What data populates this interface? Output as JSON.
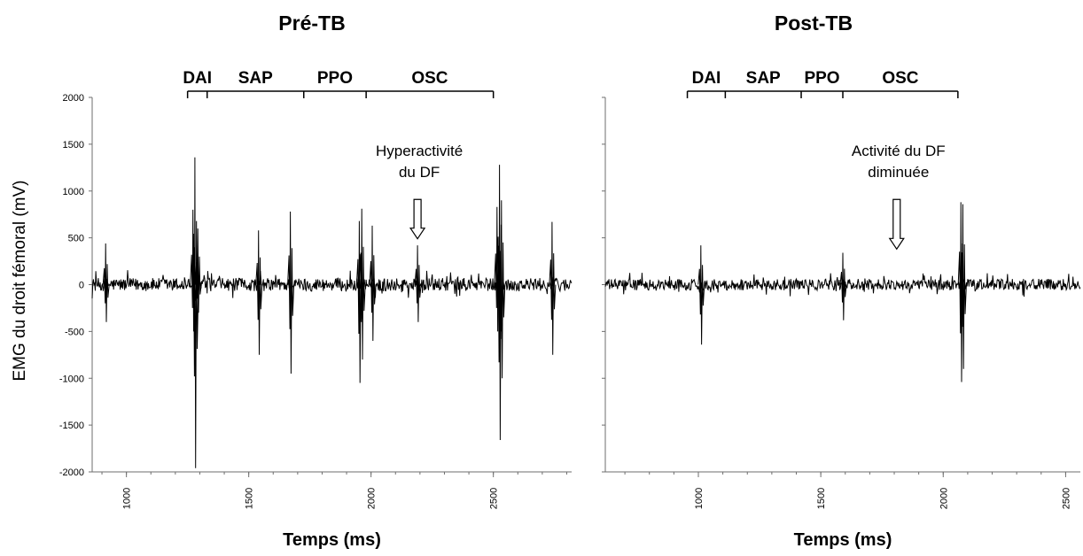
{
  "chart_data": [
    {
      "type": "line",
      "title": "Pré-TB",
      "xlabel": "Temps (ms)",
      "ylabel": "EMG du droit fémoral (mV)",
      "xlim": [
        860,
        2820
      ],
      "ylim": [
        -2000,
        2000
      ],
      "xticks": [
        1000,
        1500,
        2000,
        2500
      ],
      "yticks": [
        2000,
        1500,
        1000,
        500,
        0,
        -500,
        -1000,
        -1500,
        -2000
      ],
      "grid": false,
      "baseline_amplitude": 70,
      "phases": [
        {
          "label": "DAI",
          "start": 1250,
          "end": 1330
        },
        {
          "label": "SAP",
          "start": 1330,
          "end": 1725
        },
        {
          "label": "PPO",
          "start": 1725,
          "end": 1980
        },
        {
          "label": "OSC",
          "start": 1980,
          "end": 2500
        }
      ],
      "spikes": [
        {
          "x": 915,
          "min": -400,
          "max": 440
        },
        {
          "x": 1272,
          "min": -500,
          "max": 800
        },
        {
          "x": 1280,
          "min": -1960,
          "max": 1360
        },
        {
          "x": 1292,
          "min": -300,
          "max": 600
        },
        {
          "x": 1540,
          "min": -750,
          "max": 580
        },
        {
          "x": 1670,
          "min": -950,
          "max": 780
        },
        {
          "x": 1952,
          "min": -1050,
          "max": 680
        },
        {
          "x": 1962,
          "min": -800,
          "max": 810
        },
        {
          "x": 2005,
          "min": -600,
          "max": 630
        },
        {
          "x": 2190,
          "min": -400,
          "max": 420
        },
        {
          "x": 2515,
          "min": -500,
          "max": 830
        },
        {
          "x": 2525,
          "min": -1660,
          "max": 1280
        },
        {
          "x": 2533,
          "min": -1000,
          "max": 900
        },
        {
          "x": 2740,
          "min": -750,
          "max": 670
        }
      ],
      "annotation": {
        "lines": [
          "Hyperactivité",
          "du DF"
        ],
        "arrow_x": 2190,
        "arrow_y_top": 910,
        "arrow_y_tip": 490
      }
    },
    {
      "type": "line",
      "title": "Post-TB",
      "xlabel": "Temps (ms)",
      "ylabel": "",
      "xlim": [
        620,
        2560
      ],
      "ylim": [
        -2000,
        2000
      ],
      "xticks": [
        1000,
        1500,
        2000,
        2500
      ],
      "grid": false,
      "baseline_amplitude": 60,
      "phases": [
        {
          "label": "DAI",
          "start": 955,
          "end": 1110
        },
        {
          "label": "SAP",
          "start": 1110,
          "end": 1420
        },
        {
          "label": "PPO",
          "start": 1420,
          "end": 1590
        },
        {
          "label": "OSC",
          "start": 1590,
          "end": 2060
        }
      ],
      "spikes": [
        {
          "x": 1010,
          "min": -640,
          "max": 420
        },
        {
          "x": 1590,
          "min": -380,
          "max": 340
        },
        {
          "x": 2072,
          "min": -1040,
          "max": 880
        },
        {
          "x": 2080,
          "min": -900,
          "max": 860
        }
      ],
      "annotation": {
        "lines": [
          "Activité du DF",
          "diminuée"
        ],
        "arrow_x": 1810,
        "arrow_y_top": 910,
        "arrow_y_tip": 380
      }
    }
  ]
}
